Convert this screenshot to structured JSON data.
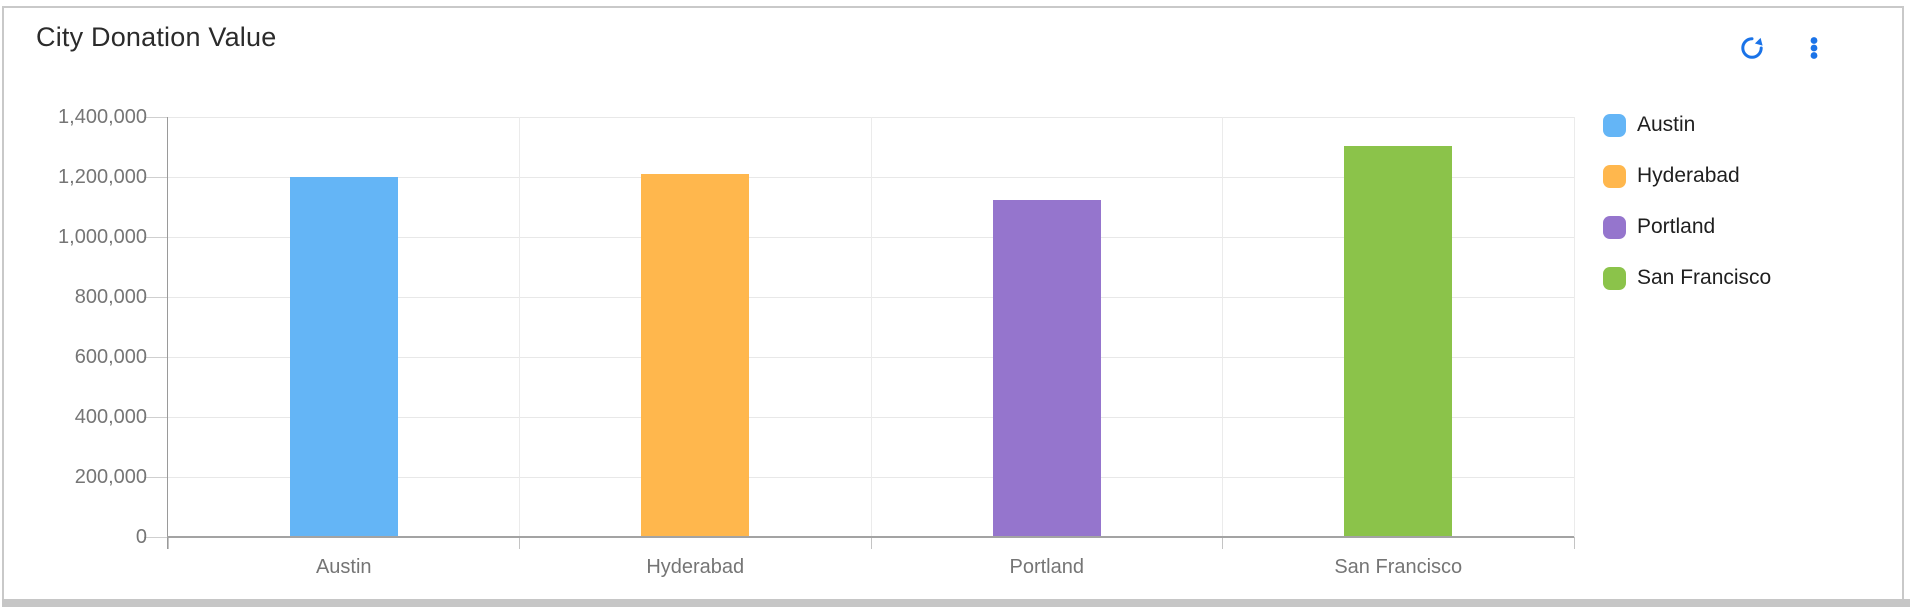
{
  "header": {
    "title": "City Donation Value"
  },
  "icons": [
    {
      "name": "refresh-icon"
    },
    {
      "name": "kebab-menu-icon"
    }
  ],
  "chart_data": {
    "type": "bar",
    "title": "City Donation Value",
    "categories": [
      "Austin",
      "Hyderabad",
      "Portland",
      "San Francisco"
    ],
    "values": [
      1200000,
      1210000,
      1125000,
      1305000
    ],
    "bar_colors": [
      "#64b5f6",
      "#ffb74d",
      "#9575cd",
      "#8bc34a"
    ],
    "xlabel": "",
    "ylabel": "",
    "ylim": [
      0,
      1400000
    ],
    "ytick_step": 200000,
    "ytick_labels": [
      "0",
      "200,000",
      "400,000",
      "600,000",
      "800,000",
      "1,000,000",
      "1,200,000",
      "1,400,000"
    ],
    "grid": true,
    "legend_position": "right",
    "legend": [
      {
        "label": "Austin",
        "color": "#64b5f6"
      },
      {
        "label": "Hyderabad",
        "color": "#ffb74d"
      },
      {
        "label": "Portland",
        "color": "#9575cd"
      },
      {
        "label": "San Francisco",
        "color": "#8bc34a"
      }
    ]
  },
  "colors": {
    "accent": "#1a73e8",
    "card_border": "#c9c9c9",
    "grid": "#e8e8e8",
    "axis_line": "#9a9a9a",
    "axis_text": "#757575",
    "legend_text": "#1f1f1f",
    "title_text": "#2b2b2b",
    "background": "#ffffff"
  }
}
